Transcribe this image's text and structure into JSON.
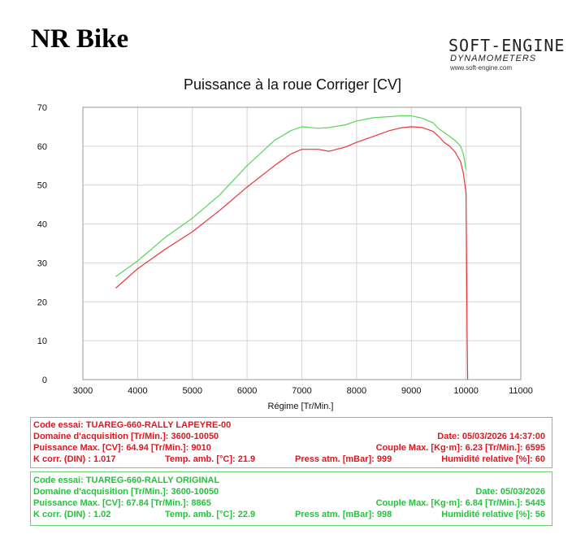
{
  "header": {
    "brand": "NR Bike",
    "logo_line1": "SOFT-ENGINE",
    "logo_line2": "DYNAMOMETERS",
    "logo_url": "www.soft-engine.com"
  },
  "chart_data": {
    "type": "line",
    "title": "Puissance à la roue Corriger [CV]",
    "xlabel": "Régime [Tr/Min.]",
    "ylabel": "",
    "xlim": [
      3000,
      11000
    ],
    "ylim": [
      0,
      70
    ],
    "xticks": [
      3000,
      4000,
      5000,
      6000,
      7000,
      8000,
      9000,
      10000,
      11000
    ],
    "yticks": [
      0,
      10,
      20,
      30,
      40,
      50,
      60,
      70
    ],
    "grid": true,
    "legend": "none",
    "series": [
      {
        "color": "#e8353a",
        "x": [
          3600,
          4000,
          4500,
          5000,
          5500,
          6000,
          6500,
          6800,
          7000,
          7300,
          7500,
          7800,
          8000,
          8300,
          8600,
          8800,
          9000,
          9200,
          9400,
          9500,
          9600,
          9700,
          9800,
          9900,
          9950,
          10000,
          10010,
          10020,
          10030
        ],
        "y": [
          23.5,
          28.5,
          33.5,
          38,
          43.5,
          49.5,
          55,
          58,
          59.2,
          59.2,
          58.7,
          59.8,
          61,
          62.5,
          64,
          64.7,
          65,
          64.8,
          63.8,
          62.5,
          61,
          60,
          58.5,
          56,
          53,
          48,
          30,
          10,
          0
        ]
      },
      {
        "color": "#59d659",
        "x": [
          3600,
          4000,
          4500,
          5000,
          5500,
          6000,
          6500,
          6800,
          7000,
          7300,
          7500,
          7800,
          8000,
          8300,
          8600,
          8800,
          9000,
          9200,
          9400,
          9500,
          9600,
          9700,
          9800,
          9900,
          9950,
          10000
        ],
        "y": [
          26.5,
          30.5,
          36.5,
          41.5,
          47.5,
          55,
          61.5,
          64,
          65,
          64.6,
          64.8,
          65.5,
          66.5,
          67.3,
          67.6,
          67.8,
          67.8,
          67.2,
          66,
          64.5,
          63.5,
          62.5,
          61.5,
          60,
          58,
          54
        ]
      }
    ]
  },
  "info_red": {
    "code": "Code essai: TUAREG-660-RALLY LAPEYRE-00",
    "domaine": "Domaine d'acquisition [Tr/Min.]: 3600-10050",
    "date": "Date: 05/03/2026   14:37:00",
    "puissance": "Puissance Max. [CV]: 64.94   [Tr/Min.]: 9010",
    "couple": "Couple Max. [Kg·m]: 6.23   [Tr/Min.]: 6595",
    "kcorr": "K corr. (DIN) : 1.017",
    "temp": "Temp. amb. [°C]: 21.9",
    "press": "Press atm. [mBar]: 999",
    "humid": "Humidité relative [%]: 60"
  },
  "info_green": {
    "code": "Code essai: TUAREG-660-RALLY ORIGINAL",
    "domaine": "Domaine d'acquisition [Tr/Min.]: 3600-10050",
    "date": "Date: 05/03/2026",
    "puissance": "Puissance Max. [CV]: 67.84   [Tr/Min.]: 8865",
    "couple": "Couple Max. [Kg·m]: 6.84   [Tr/Min.]: 5445",
    "kcorr": "K corr. (DIN) : 1.02",
    "temp": "Temp. amb. [°C]: 22.9",
    "press": "Press atm. [mBar]: 998",
    "humid": "Humidité relative [%]: 56"
  }
}
